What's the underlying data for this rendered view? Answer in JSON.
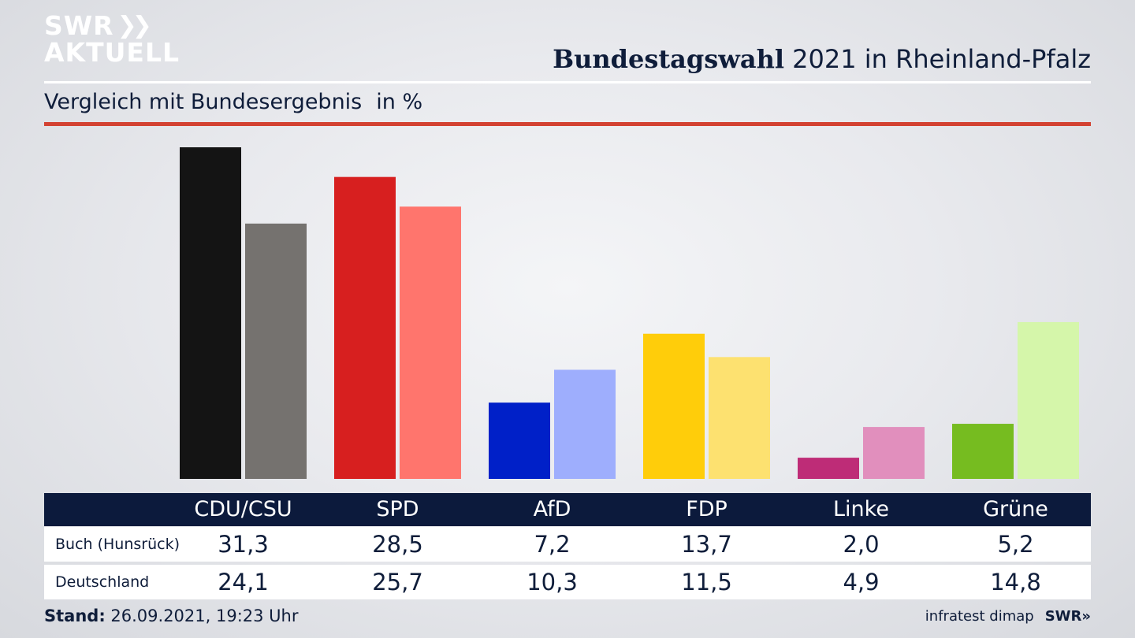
{
  "header": {
    "logo_line1": "SWR",
    "logo_line2": "AKTUELL",
    "title_bold": "Bundestagswahl",
    "title_rest": " 2021 in Rheinland-Pfalz",
    "subtitle": "Vergleich mit Bundesergebnis",
    "unit": "in %"
  },
  "table": {
    "row_labels": [
      "Buch (Hunsrück)",
      "Deutschland"
    ]
  },
  "footer": {
    "stand_label": "Stand:",
    "stand_value": " 26.09.2021, 19:23 Uhr",
    "source": "infratest dimap",
    "brand": "SWR»"
  },
  "colors": {
    "navy": "#0c1a3c",
    "red_rule": "#d34232"
  },
  "chart_data": {
    "type": "bar",
    "title": "Bundestagswahl 2021 in Rheinland-Pfalz",
    "subtitle": "Vergleich mit Bundesergebnis in %",
    "categories": [
      "CDU/CSU",
      "SPD",
      "AfD",
      "FDP",
      "Linke",
      "Grüne"
    ],
    "series": [
      {
        "name": "Buch (Hunsrück)",
        "values": [
          31.3,
          28.5,
          7.2,
          13.7,
          2.0,
          5.2
        ],
        "labels": [
          "31,3",
          "28,5",
          "7,2",
          "13,7",
          "2,0",
          "5,2"
        ],
        "colors": [
          "#141414",
          "#d71f1f",
          "#0020c8",
          "#ffcd0a",
          "#be2c77",
          "#76bc20"
        ]
      },
      {
        "name": "Deutschland",
        "values": [
          24.1,
          25.7,
          10.3,
          11.5,
          4.9,
          14.8
        ],
        "labels": [
          "24,1",
          "25,7",
          "10,3",
          "11,5",
          "4,9",
          "14,8"
        ],
        "colors": [
          "#75726f",
          "#ff756d",
          "#9eaefd",
          "#fde170",
          "#e18fbd",
          "#d5f6aa"
        ]
      }
    ],
    "grid": false,
    "legend": "table-below"
  }
}
